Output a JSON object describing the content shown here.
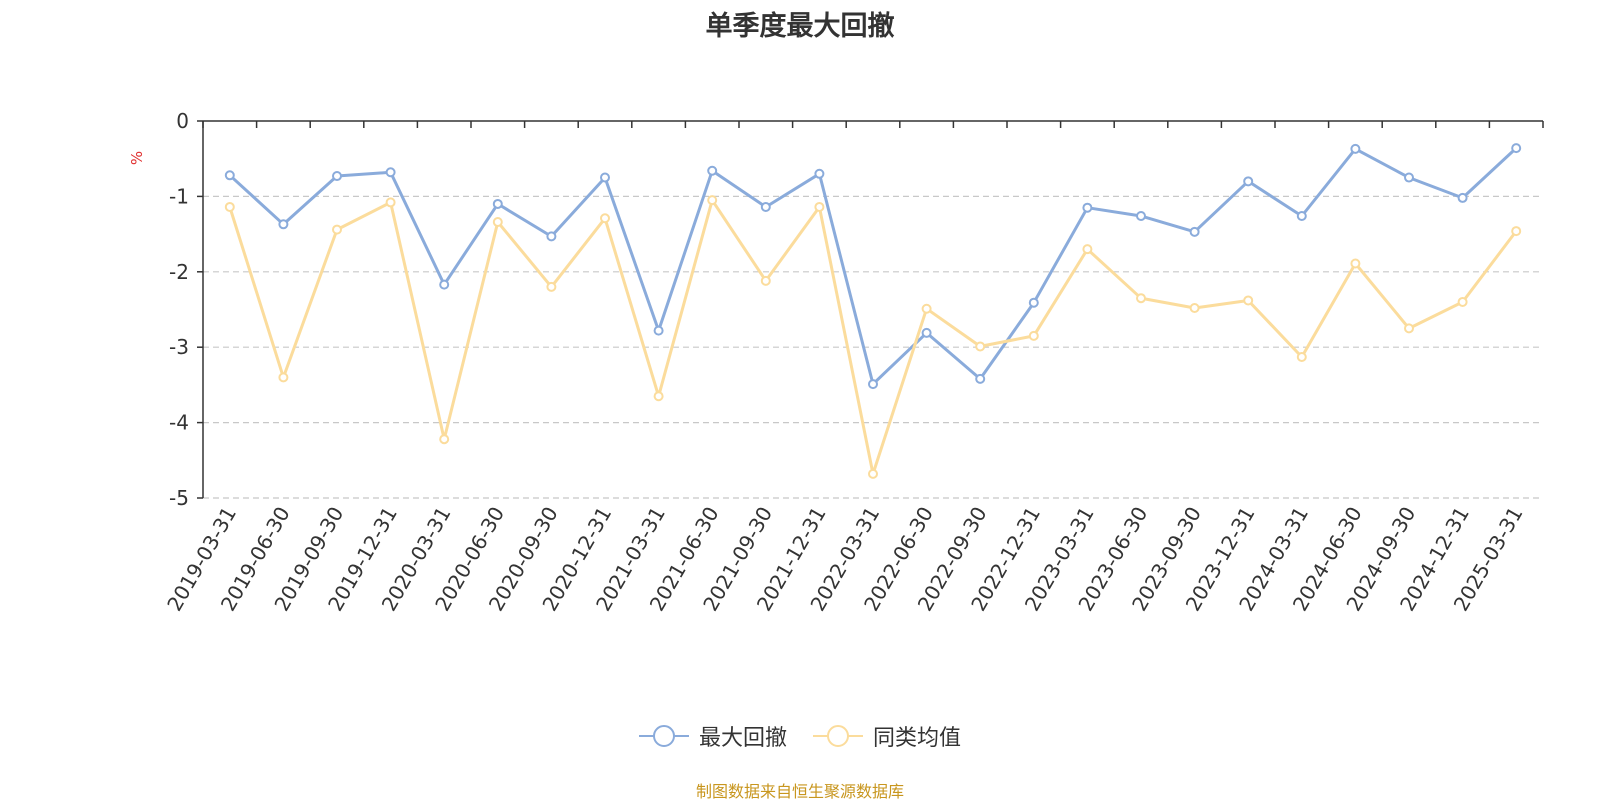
{
  "chart_data": {
    "type": "line",
    "title": "单季度最大回撤",
    "ylabel": "%",
    "ylim": [
      -5,
      0
    ],
    "yticks": [
      0,
      -1,
      -2,
      -3,
      -4,
      -5
    ],
    "grid": true,
    "legend_position": "bottom-center",
    "categories": [
      "2019-03-31",
      "2019-06-30",
      "2019-09-30",
      "2019-12-31",
      "2020-03-31",
      "2020-06-30",
      "2020-09-30",
      "2020-12-31",
      "2021-03-31",
      "2021-06-30",
      "2021-09-30",
      "2021-12-31",
      "2022-03-31",
      "2022-06-30",
      "2022-09-30",
      "2022-12-31",
      "2023-03-31",
      "2023-06-30",
      "2023-09-30",
      "2023-12-31",
      "2024-03-31",
      "2024-06-30",
      "2024-09-30",
      "2024-12-31",
      "2025-03-31"
    ],
    "series": [
      {
        "name": "最大回撤",
        "color": "#8aabdb",
        "values": [
          -0.72,
          -1.37,
          -0.73,
          -0.68,
          -2.17,
          -1.1,
          -1.53,
          -0.75,
          -2.78,
          -0.66,
          -1.14,
          -0.7,
          -3.49,
          -2.81,
          -3.42,
          -2.41,
          -1.15,
          -1.26,
          -1.47,
          -0.8,
          -1.26,
          -0.37,
          -0.75,
          -1.02,
          -0.36
        ]
      },
      {
        "name": "同类均值",
        "color": "#fbdc9c",
        "values": [
          -1.14,
          -3.4,
          -1.44,
          -1.08,
          -4.22,
          -1.34,
          -2.2,
          -1.29,
          -3.65,
          -1.05,
          -2.12,
          -1.14,
          -4.68,
          -2.49,
          -2.99,
          -2.85,
          -1.7,
          -2.35,
          -2.48,
          -2.38,
          -3.13,
          -1.89,
          -2.75,
          -2.4,
          -1.46
        ]
      }
    ]
  },
  "source_note": "制图数据来自恒生聚源数据库"
}
